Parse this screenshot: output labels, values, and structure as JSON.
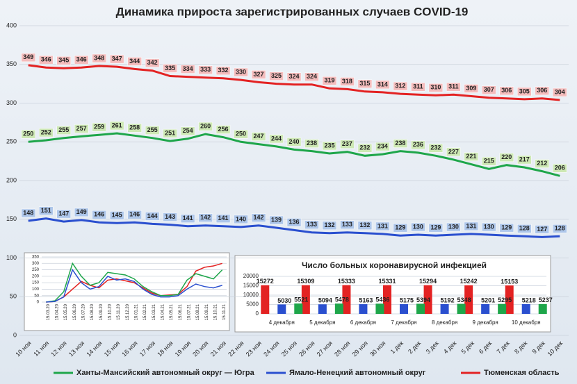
{
  "chart_data": [
    {
      "type": "line",
      "title": "Динамика прироста зарегистрированных случаев COVID-19",
      "categories": [
        "10 ноя",
        "11 ноя",
        "12 ноя",
        "13 ноя",
        "14 ноя",
        "15 ноя",
        "16 ноя",
        "17 ноя",
        "18 ноя",
        "19 ноя",
        "20 ноя",
        "21 ноя",
        "22 ноя",
        "23 ноя",
        "24 ноя",
        "25 ноя",
        "26 ноя",
        "27 ноя",
        "28 ноя",
        "29 ноя",
        "30 ноя",
        "1 дек",
        "2 дек",
        "3 дек",
        "4 дек",
        "5 дек",
        "6 дек",
        "7 дек",
        "8 дек",
        "9 дек",
        "10 дек"
      ],
      "series": [
        {
          "name": "Ханты-Мансийский автономный округ — Югра",
          "color": "#1ea64a",
          "values": [
            250,
            252,
            255,
            257,
            259,
            261,
            258,
            255,
            251,
            254,
            260,
            256,
            250,
            247,
            244,
            240,
            238,
            235,
            237,
            232,
            234,
            238,
            236,
            232,
            227,
            221,
            215,
            220,
            217,
            212,
            206
          ]
        },
        {
          "name": "Ямало-Ненецкий автономный округ",
          "color": "#2a4fcf",
          "values": [
            148,
            151,
            147,
            149,
            146,
            145,
            146,
            144,
            143,
            141,
            142,
            141,
            140,
            142,
            139,
            136,
            133,
            132,
            133,
            132,
            131,
            129,
            130,
            129,
            130,
            131,
            130,
            129,
            128,
            127,
            128
          ]
        },
        {
          "name": "Тюменская область",
          "color": "#e32222",
          "values": [
            349,
            346,
            345,
            346,
            348,
            347,
            344,
            342,
            335,
            334,
            333,
            332,
            330,
            327,
            325,
            324,
            324,
            319,
            318,
            315,
            314,
            312,
            311,
            310,
            311,
            309,
            307,
            306,
            305,
            306,
            304
          ]
        }
      ],
      "ylim": [
        0,
        400
      ],
      "yticks": [
        0,
        50,
        100,
        150,
        200,
        250,
        300,
        350,
        400
      ],
      "grid": true,
      "legend": "bottom"
    },
    {
      "type": "line",
      "categories": [
        "15.03.20",
        "15.04.20",
        "15.05.20",
        "15.06.20",
        "15.07.20",
        "15.08.20",
        "15.09.20",
        "15.10.20",
        "15.11.20",
        "15.12.20",
        "15.01.21",
        "15.02.21",
        "15.03.21",
        "15.04.21",
        "15.05.21",
        "15.06.21",
        "15.07.21",
        "15.08.21",
        "15.09.21",
        "15.10.21",
        "15.11.21"
      ],
      "series": [
        {
          "color": "#e32222",
          "values": [
            0,
            5,
            40,
            100,
            160,
            130,
            110,
            170,
            180,
            165,
            150,
            110,
            70,
            50,
            55,
            60,
            120,
            240,
            270,
            280,
            300
          ]
        },
        {
          "color": "#1ea64a",
          "values": [
            0,
            10,
            80,
            300,
            200,
            130,
            150,
            230,
            220,
            210,
            180,
            120,
            80,
            50,
            50,
            60,
            170,
            220,
            200,
            180,
            250
          ]
        },
        {
          "color": "#2a4fcf",
          "values": [
            0,
            5,
            40,
            250,
            150,
            100,
            120,
            200,
            170,
            180,
            160,
            100,
            60,
            40,
            40,
            50,
            100,
            140,
            120,
            110,
            130
          ]
        }
      ],
      "ylim": [
        0,
        350
      ],
      "yticks": [
        0,
        50,
        100,
        150,
        200,
        250,
        300,
        350
      ],
      "grid": true
    },
    {
      "type": "bar",
      "title": "Число больных коронавирусной инфекцией",
      "categories": [
        "4 декабря",
        "5 декабря",
        "6 декабря",
        "7 декабря",
        "8 декабря",
        "9 декабря",
        "10 декабря"
      ],
      "series": [
        {
          "color": "#e32222",
          "values": [
            15272,
            15309,
            15333,
            15331,
            15294,
            15242,
            15153
          ]
        },
        {
          "color": "#2a4fcf",
          "values": [
            5030,
            5094,
            5163,
            5175,
            5192,
            5201,
            5218
          ]
        },
        {
          "color": "#1ea64a",
          "values": [
            5521,
            5478,
            5436,
            5394,
            5348,
            5295,
            5237
          ]
        }
      ],
      "ylim": [
        0,
        20000
      ],
      "yticks": [
        0,
        5000,
        10000,
        15000,
        20000
      ],
      "grid": true
    }
  ]
}
